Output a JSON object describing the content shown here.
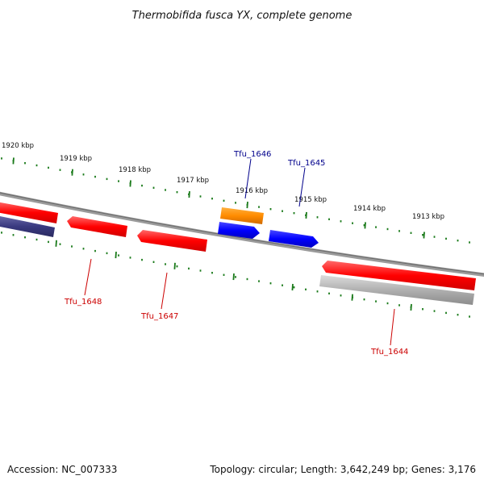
{
  "title": "Thermobifida fusca YX, complete genome",
  "footer": {
    "accession": "Accession: NC_007333",
    "summary": "Topology: circular; Length: 3,642,249 bp; Genes: 3,176"
  },
  "colors": {
    "backbone": "#8a8a8a",
    "ticks": "#1a7a1a",
    "red_gene": "#ff0000",
    "blue_gene": "#0000ff",
    "orange_gene": "#ff8c00",
    "navy_gene": "#3a3a80",
    "grey_gene": "#b0b0b0",
    "red_label": "#cc0000",
    "blue_label": "#00008b"
  },
  "scale_labels": [
    "1920 kbp",
    "1919 kbp",
    "1918 kbp",
    "1917 kbp",
    "1916 kbp",
    "1915 kbp",
    "1914 kbp",
    "1913 kbp"
  ],
  "gene_labels": [
    {
      "text": "Tfu_1646",
      "color": "#00008b"
    },
    {
      "text": "Tfu_1645",
      "color": "#00008b"
    },
    {
      "text": "Tfu_1648",
      "color": "#cc0000"
    },
    {
      "text": "Tfu_1647",
      "color": "#cc0000"
    },
    {
      "text": "Tfu_1644",
      "color": "#cc0000"
    }
  ]
}
